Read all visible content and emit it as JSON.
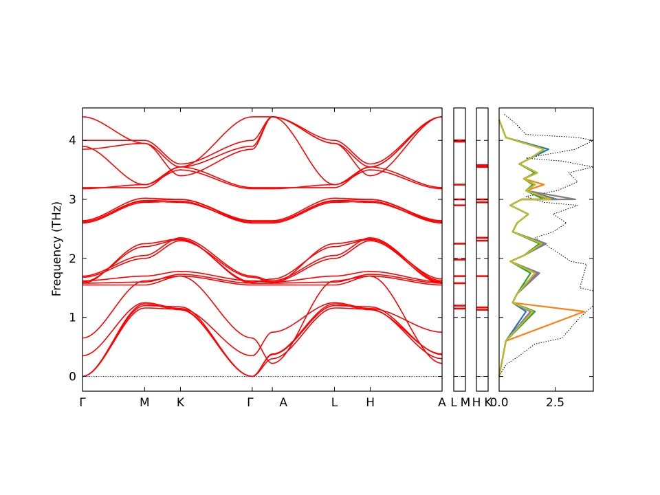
{
  "chart_data": [
    {
      "type": "line",
      "title": "",
      "xlabel": "",
      "ylabel": "Frequency (THz)",
      "ylim": [
        -0.25,
        4.55
      ],
      "yticks": [
        0,
        1,
        2,
        3,
        4
      ],
      "xticks": [
        "Γ",
        "M",
        "K",
        "Γ",
        "A",
        "L",
        "H",
        "A"
      ],
      "path_segments": [
        {
          "start": "Γ",
          "end": "M",
          "length": 0.577
        },
        {
          "start": "M",
          "end": "K",
          "length": 0.333
        },
        {
          "start": "K",
          "end": "Γ",
          "length": 0.667
        },
        {
          "start": "Γ",
          "end": "A",
          "length": 0.187
        },
        {
          "start": "A",
          "end": "L",
          "length": 0.577
        },
        {
          "start": "L",
          "end": "H",
          "length": 0.333
        },
        {
          "start": "H",
          "end": "A",
          "length": 0.667
        }
      ],
      "band_color": "#ff0000",
      "zero_line_color": "#0000cc",
      "grid": false,
      "band_groups": [
        {
          "name": "",
          "nodes": [
            0.0,
            1.23,
            1.13,
            0.0,
            0.38,
            1.23,
            1.13,
            0.38
          ]
        },
        {
          "name": "",
          "nodes": [
            0.0,
            1.2,
            1.18,
            0.0,
            0.37,
            1.2,
            1.18,
            0.37
          ]
        },
        {
          "name": "",
          "nodes": [
            0.0,
            1.16,
            1.14,
            0.0,
            0.3,
            1.16,
            1.14,
            0.3
          ]
        },
        {
          "name": "",
          "nodes": [
            0.35,
            1.25,
            1.15,
            0.35,
            0.75,
            1.25,
            1.15,
            0.75
          ]
        },
        {
          "name": "",
          "nodes": [
            0.65,
            1.62,
            1.7,
            0.65,
            0.22,
            1.62,
            1.7,
            0.22
          ]
        },
        {
          "name": "",
          "nodes": [
            1.55,
            1.55,
            1.7,
            1.55,
            1.55,
            1.55,
            1.7,
            1.55
          ]
        },
        {
          "name": "",
          "nodes": [
            1.58,
            1.6,
            1.73,
            1.58,
            1.58,
            1.6,
            1.73,
            1.58
          ]
        },
        {
          "name": "",
          "nodes": [
            1.62,
            1.7,
            1.78,
            1.62,
            1.6,
            1.7,
            1.78,
            1.6
          ]
        },
        {
          "name": "",
          "nodes": [
            1.68,
            2.0,
            2.3,
            1.68,
            1.6,
            2.0,
            2.3,
            1.6
          ]
        },
        {
          "name": "",
          "nodes": [
            1.7,
            2.05,
            2.35,
            1.7,
            1.62,
            2.05,
            2.35,
            1.62
          ]
        },
        {
          "name": "",
          "nodes": [
            1.6,
            2.2,
            2.32,
            1.6,
            1.65,
            2.2,
            2.32,
            1.65
          ]
        },
        {
          "name": "",
          "nodes": [
            1.58,
            2.25,
            2.33,
            1.58,
            1.58,
            2.25,
            2.33,
            1.58
          ]
        },
        {
          "name": "",
          "nodes": [
            2.6,
            2.95,
            2.97,
            2.6,
            2.6,
            2.95,
            2.97,
            2.6
          ]
        },
        {
          "name": "",
          "nodes": [
            2.62,
            2.97,
            2.95,
            2.62,
            2.62,
            2.97,
            2.95,
            2.62
          ]
        },
        {
          "name": "",
          "nodes": [
            2.62,
            2.98,
            3.0,
            2.62,
            2.62,
            2.98,
            3.0,
            2.62
          ]
        },
        {
          "name": "",
          "nodes": [
            2.64,
            3.02,
            3.0,
            2.64,
            2.64,
            3.02,
            3.0,
            2.64
          ]
        },
        {
          "name": "",
          "nodes": [
            3.2,
            3.2,
            3.55,
            3.2,
            3.2,
            3.2,
            3.55,
            3.2
          ]
        },
        {
          "name": "",
          "nodes": [
            3.18,
            3.25,
            3.5,
            3.18,
            3.18,
            3.25,
            3.5,
            3.18
          ]
        },
        {
          "name": "",
          "nodes": [
            3.9,
            3.25,
            3.55,
            3.9,
            4.4,
            3.25,
            3.55,
            4.4
          ]
        },
        {
          "name": "",
          "nodes": [
            4.0,
            4.0,
            3.6,
            4.0,
            4.4,
            4.0,
            3.6,
            4.4
          ]
        },
        {
          "name": "",
          "nodes": [
            4.4,
            3.95,
            3.55,
            4.4,
            4.4,
            3.95,
            3.55,
            4.4
          ]
        },
        {
          "name": "",
          "nodes": [
            3.85,
            3.95,
            3.4,
            3.85,
            4.4,
            3.95,
            3.4,
            4.4
          ]
        }
      ]
    },
    {
      "type": "line",
      "xticks": [
        "L",
        "M"
      ],
      "ylim": [
        -0.25,
        4.55
      ],
      "flat_levels": [
        1.15,
        1.2,
        1.58,
        1.7,
        1.98,
        2.25,
        2.9,
        3.0,
        3.25,
        3.98,
        4.0
      ]
    },
    {
      "type": "line",
      "xticks": [
        "H",
        "K"
      ],
      "ylim": [
        -0.25,
        4.55
      ],
      "flat_levels": [
        1.13,
        1.17,
        1.7,
        2.3,
        2.35,
        2.95,
        3.0,
        3.55,
        3.58
      ]
    },
    {
      "type": "line",
      "title": "",
      "xlabel": "",
      "xlim": [
        0.0,
        4.2
      ],
      "xticks": [
        "0.0",
        "2.5"
      ],
      "ylim": [
        -0.25,
        4.55
      ],
      "series": [
        {
          "color": "#000000",
          "style": "dotted",
          "x": [
            0.0,
            0.3,
            0.9,
            1.6,
            2.8,
            3.6,
            4.2,
            4.2,
            3.6,
            3.9,
            3.2,
            2.6,
            1.6,
            2.4,
            3.0,
            2.4,
            3.5,
            2.0,
            1.2,
            2.6,
            3.5,
            3.1,
            4.2,
            2.8,
            1.2,
            3.4,
            4.2,
            3.5,
            1.2,
            0.7,
            0.2
          ],
          "y": [
            0.0,
            0.2,
            0.35,
            0.55,
            0.65,
            1.0,
            1.2,
            1.45,
            1.5,
            1.9,
            1.95,
            2.1,
            2.35,
            2.45,
            2.6,
            2.75,
            2.9,
            2.95,
            3.05,
            3.15,
            3.3,
            3.45,
            3.55,
            3.65,
            3.7,
            3.85,
            4.0,
            4.05,
            4.1,
            4.3,
            4.45
          ]
        },
        {
          "color": "#1f77b4",
          "x": [
            0.0,
            0.3,
            1.2,
            0.6,
            0.8,
            1.6,
            0.5,
            1.1,
            2.0,
            0.6,
            0.8,
            1.3,
            0.5,
            1.0,
            2.6,
            1.2,
            1.6,
            1.1,
            1.7,
            0.9,
            1.4,
            2.2,
            0.3,
            0.0
          ],
          "y": [
            0.0,
            0.6,
            1.1,
            1.25,
            1.4,
            1.75,
            1.95,
            2.05,
            2.25,
            2.45,
            2.6,
            2.75,
            2.9,
            3.0,
            3.0,
            3.15,
            3.25,
            3.35,
            3.45,
            3.6,
            3.7,
            3.85,
            4.05,
            4.35
          ]
        },
        {
          "color": "#ff7f0e",
          "x": [
            0.0,
            0.3,
            3.8,
            0.6,
            0.8,
            1.6,
            0.5,
            1.1,
            2.0,
            0.6,
            0.8,
            1.3,
            0.5,
            1.0,
            2.4,
            1.2,
            2.0,
            1.1,
            1.7,
            0.9,
            1.4,
            2.0,
            0.3,
            0.0
          ],
          "y": [
            0.0,
            0.6,
            1.1,
            1.25,
            1.4,
            1.75,
            1.95,
            2.05,
            2.25,
            2.45,
            2.6,
            2.75,
            2.9,
            3.0,
            3.0,
            3.15,
            3.25,
            3.35,
            3.45,
            3.6,
            3.7,
            3.85,
            4.05,
            4.35
          ]
        },
        {
          "color": "#2ca02c",
          "x": [
            0.0,
            0.3,
            1.6,
            0.6,
            0.8,
            1.4,
            0.5,
            1.1,
            1.8,
            0.6,
            0.8,
            1.3,
            0.5,
            1.0,
            2.0,
            1.2,
            1.5,
            1.1,
            1.6,
            0.9,
            1.4,
            2.0,
            0.3,
            0.0
          ],
          "y": [
            0.0,
            0.6,
            1.1,
            1.25,
            1.4,
            1.75,
            1.95,
            2.05,
            2.25,
            2.45,
            2.6,
            2.75,
            2.9,
            3.0,
            3.0,
            3.15,
            3.25,
            3.35,
            3.45,
            3.6,
            3.7,
            3.85,
            4.05,
            4.35
          ]
        },
        {
          "color": "#9467bd",
          "x": [
            0.0,
            0.3,
            1.4,
            0.6,
            0.8,
            1.7,
            0.5,
            1.1,
            2.0,
            0.6,
            0.8,
            1.3,
            0.5,
            1.0,
            2.2,
            1.2,
            1.6,
            1.1,
            1.7,
            0.9,
            1.4,
            2.0,
            0.3,
            0.0
          ],
          "y": [
            0.0,
            0.6,
            1.1,
            1.25,
            1.4,
            1.75,
            1.95,
            2.05,
            2.25,
            2.45,
            2.6,
            2.75,
            2.9,
            3.0,
            3.0,
            3.15,
            3.25,
            3.35,
            3.45,
            3.6,
            3.7,
            3.85,
            4.05,
            4.35
          ]
        },
        {
          "color": "#7f7f7f",
          "x": [
            0.0,
            0.3,
            1.5,
            0.6,
            0.8,
            1.8,
            0.5,
            1.1,
            2.1,
            0.6,
            0.8,
            1.3,
            0.5,
            1.0,
            3.4,
            1.2,
            1.6,
            1.1,
            1.7,
            0.9,
            1.4,
            2.0,
            0.3,
            0.0
          ],
          "y": [
            0.0,
            0.6,
            1.1,
            1.25,
            1.4,
            1.75,
            1.95,
            2.05,
            2.25,
            2.45,
            2.6,
            2.75,
            2.9,
            3.0,
            3.0,
            3.15,
            3.25,
            3.35,
            3.45,
            3.6,
            3.7,
            3.85,
            4.05,
            4.35
          ]
        },
        {
          "color": "#bcbd22",
          "x": [
            0.0,
            0.3,
            1.5,
            0.6,
            0.8,
            1.6,
            0.5,
            1.1,
            1.9,
            0.6,
            0.8,
            1.3,
            0.5,
            1.0,
            2.3,
            1.2,
            1.6,
            1.1,
            1.7,
            0.9,
            1.4,
            2.0,
            0.3,
            0.0
          ],
          "y": [
            0.0,
            0.6,
            1.1,
            1.25,
            1.4,
            1.75,
            1.95,
            2.05,
            2.25,
            2.45,
            2.6,
            2.75,
            2.9,
            3.0,
            3.0,
            3.15,
            3.25,
            3.35,
            3.45,
            3.6,
            3.7,
            3.85,
            4.05,
            4.35
          ]
        }
      ]
    }
  ]
}
